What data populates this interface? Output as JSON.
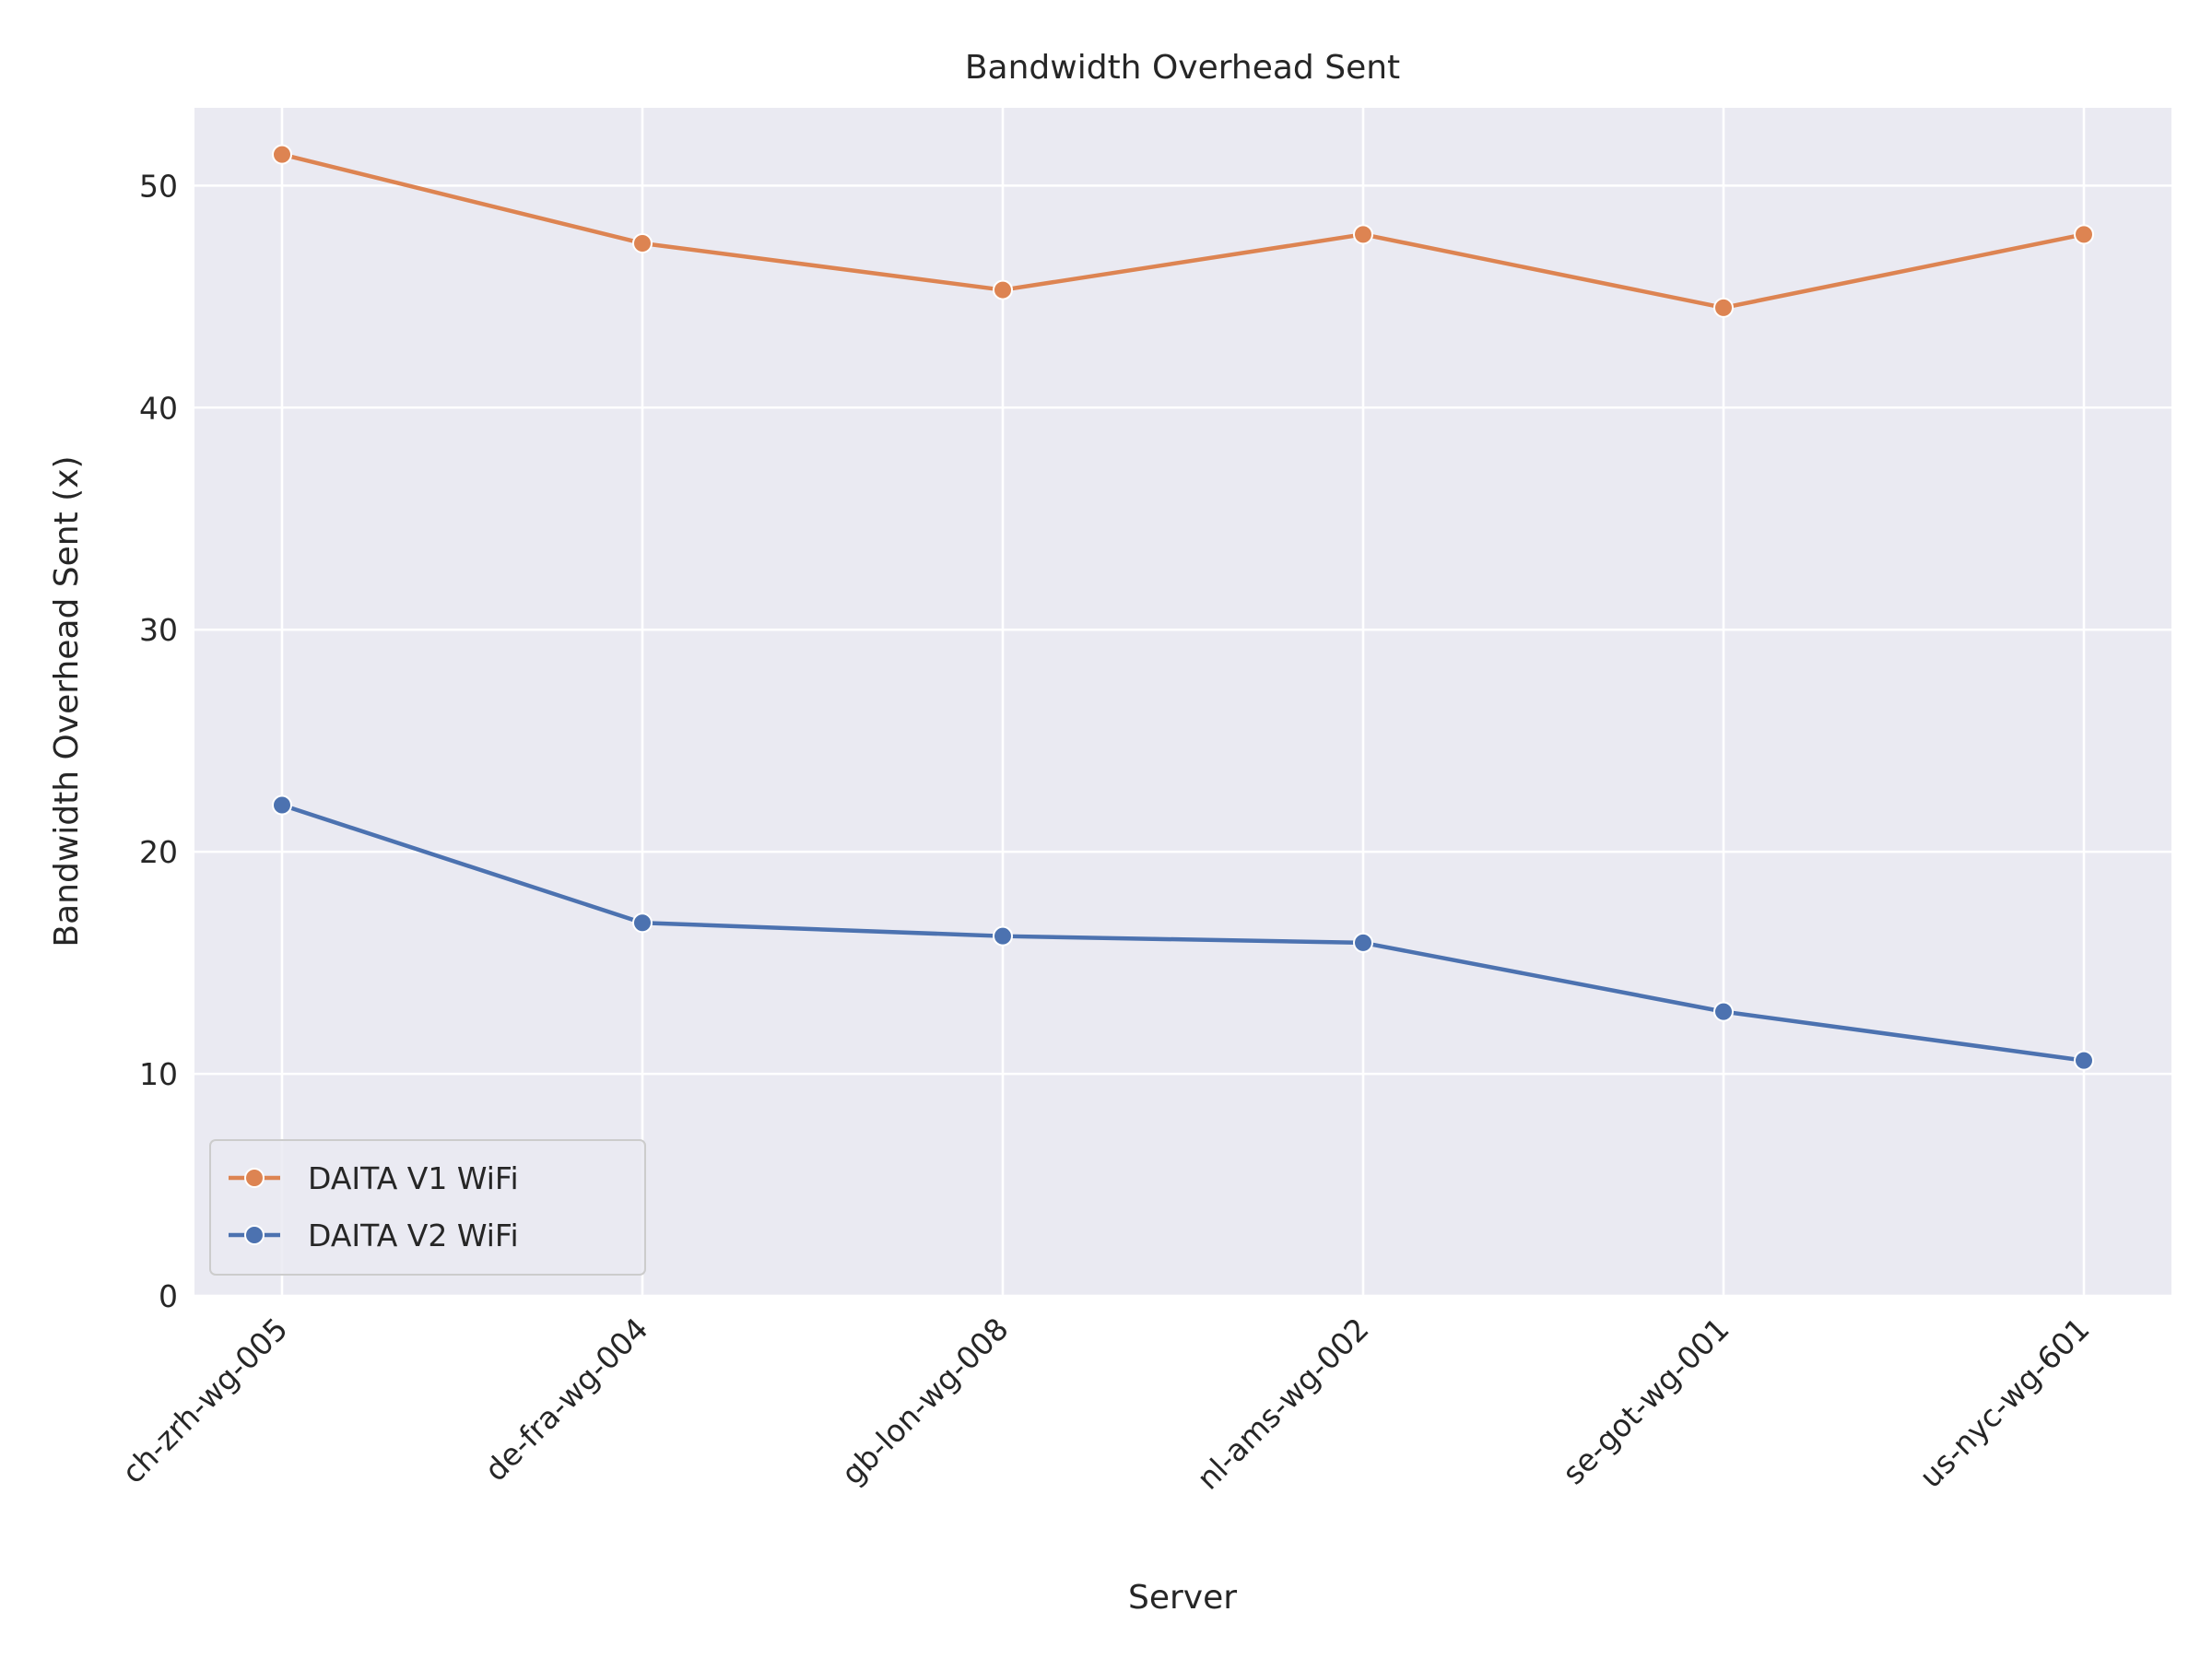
{
  "chart_data": {
    "type": "line",
    "title": "Bandwidth Overhead Sent",
    "xlabel": "Server",
    "ylabel": "Bandwidth Overhead Sent (x)",
    "categories": [
      "ch-zrh-wg-005",
      "de-fra-wg-004",
      "gb-lon-wg-008",
      "nl-ams-wg-002",
      "se-got-wg-001",
      "us-nyc-wg-601"
    ],
    "ylim": [
      0,
      53.5
    ],
    "yticks": [
      0,
      10,
      20,
      30,
      40,
      50
    ],
    "grid": true,
    "legend_position": "lower-left",
    "series": [
      {
        "name": "DAITA V1 WiFi",
        "color": "#dd8452",
        "values": [
          51.4,
          47.4,
          45.3,
          47.8,
          44.5,
          47.8
        ]
      },
      {
        "name": "DAITA V2 WiFi",
        "color": "#4c72b0",
        "values": [
          22.1,
          16.8,
          16.2,
          15.9,
          12.8,
          10.6
        ]
      }
    ]
  }
}
